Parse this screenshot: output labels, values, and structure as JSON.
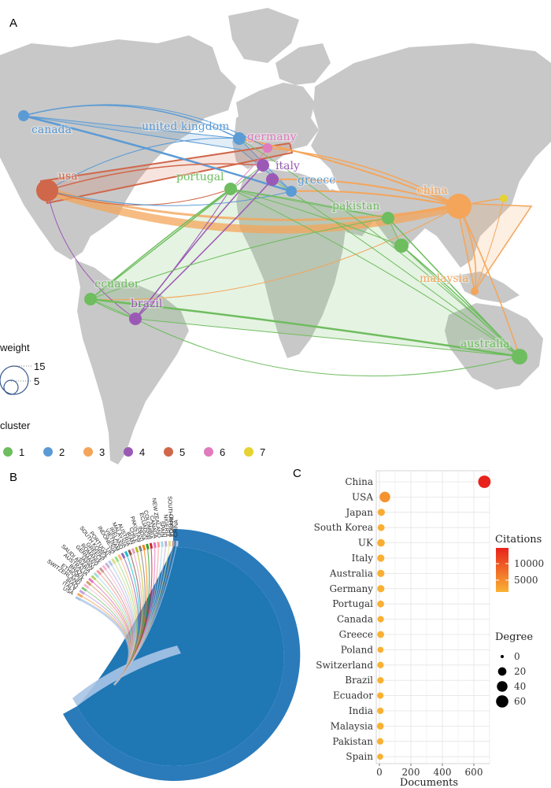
{
  "panel_a": {
    "letter": "A",
    "countries": [
      {
        "name": "canada",
        "cluster": 2
      },
      {
        "name": "united kingdom",
        "cluster": 2
      },
      {
        "name": "germany",
        "cluster": 6
      },
      {
        "name": "usa",
        "cluster": 5
      },
      {
        "name": "italy",
        "cluster": 4
      },
      {
        "name": "portugal",
        "cluster": 1
      },
      {
        "name": "greece",
        "cluster": 2
      },
      {
        "name": "china",
        "cluster": 3
      },
      {
        "name": "pakistan",
        "cluster": 1
      },
      {
        "name": "malaysia",
        "cluster": 3
      },
      {
        "name": "ecuador",
        "cluster": 1
      },
      {
        "name": "brazil",
        "cluster": 4
      },
      {
        "name": "australia",
        "cluster": 1
      }
    ],
    "weight_legend": {
      "title": "weight",
      "values": [
        "15",
        "5"
      ]
    },
    "cluster_legend": {
      "title": "cluster",
      "items": [
        {
          "label": "1",
          "color": "#6ebd5f"
        },
        {
          "label": "2",
          "color": "#5b9bd5"
        },
        {
          "label": "3",
          "color": "#f4a55a"
        },
        {
          "label": "4",
          "color": "#9b59b6"
        },
        {
          "label": "5",
          "color": "#d0674a"
        },
        {
          "label": "6",
          "color": "#e07bbe"
        },
        {
          "label": "7",
          "color": "#e6d230"
        }
      ]
    }
  },
  "panel_b": {
    "letter": "B",
    "labels": [
      "USA",
      "ITALY",
      "IRAQ",
      "SWITZERLAND",
      "ETHIOPIA",
      "BRAZIL",
      "AUSTRALIA",
      "SAUDI ARABIA",
      "JAPAN",
      "GERMANY",
      "ROMANIA",
      "GREECE",
      "SOUTH KOREA",
      "PORTUGAL",
      "UK",
      "INDONESIA",
      "VIETNAM",
      "IRELAND",
      "MALAYSIA",
      "AUSTRIA",
      "IRAN",
      "CHILE",
      "PAKISTAN",
      "INDIA",
      "ECUADOR",
      "COLOMBIA",
      "CANADA",
      "NEW ZEALAND",
      "SPAIN",
      "NIGERIA",
      "SOUTH AFRICA",
      "POLAND",
      "CHINA"
    ]
  },
  "chart_data": {
    "type": "scatter",
    "panel": "C",
    "letter": "C",
    "categories": [
      "China",
      "USA",
      "Japan",
      "South Korea",
      "UK",
      "Italy",
      "Australia",
      "Germany",
      "Portugal",
      "Canada",
      "Greece",
      "Poland",
      "Switzerland",
      "Brazil",
      "Ecuador",
      "India",
      "Malaysia",
      "Pakistan",
      "Spain"
    ],
    "documents": [
      667,
      35,
      12,
      11,
      10,
      9,
      9,
      9,
      8,
      8,
      8,
      7,
      7,
      7,
      6,
      6,
      6,
      5,
      5
    ],
    "citations": [
      13500,
      3000,
      600,
      400,
      500,
      300,
      350,
      300,
      250,
      300,
      250,
      200,
      250,
      200,
      150,
      200,
      150,
      150,
      150
    ],
    "degree": [
      62,
      40,
      12,
      10,
      14,
      12,
      12,
      12,
      10,
      8,
      10,
      6,
      8,
      8,
      8,
      8,
      10,
      8,
      6
    ],
    "xlabel": "Documents",
    "xticks": [
      0,
      200,
      400,
      600
    ],
    "xlim": [
      -20,
      700
    ],
    "grid": true,
    "citations_legend": {
      "title": "Citations",
      "ticks": [
        "10000",
        "5000"
      ],
      "low_color": "#f9b233",
      "high_color": "#e8231c"
    },
    "degree_legend": {
      "title": "Degree",
      "ticks": [
        "0",
        "20",
        "40",
        "60"
      ]
    }
  }
}
